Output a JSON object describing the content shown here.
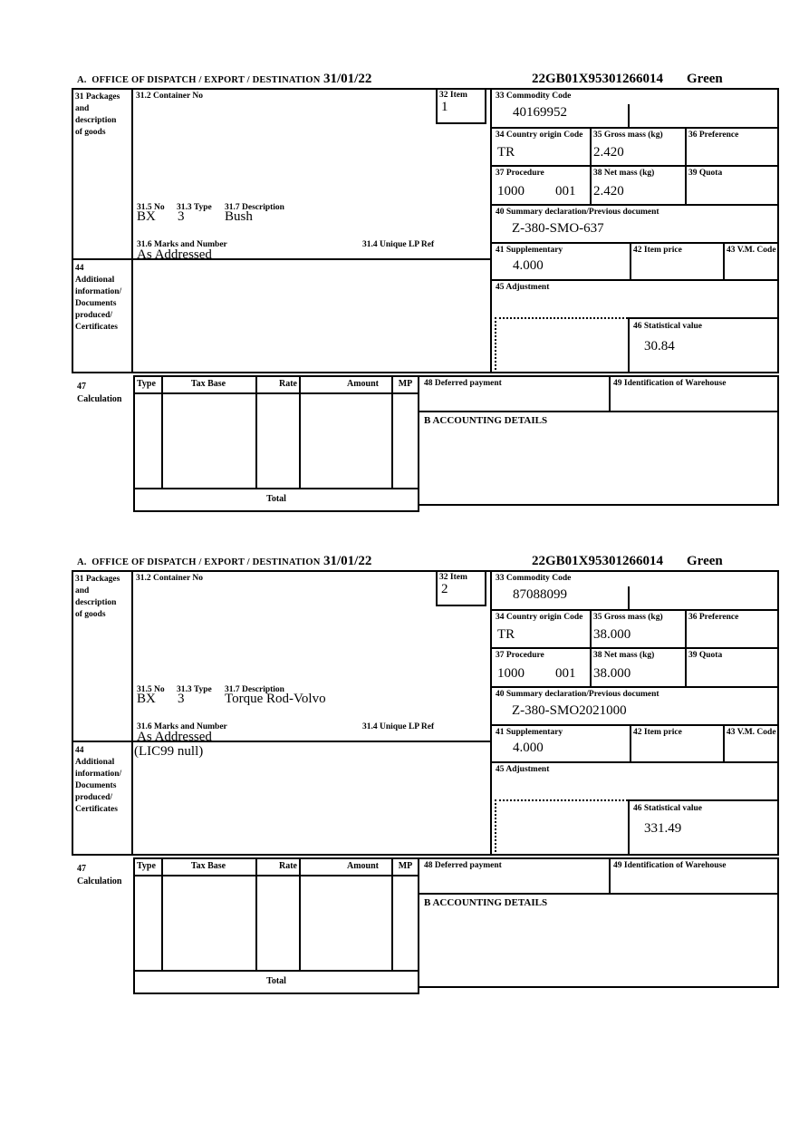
{
  "form": {
    "header": {
      "office": "A.  OFFICE OF DISPATCH / EXPORT / DESTINATION",
      "date": "31/01/22",
      "reference": "22GB01X95301266014",
      "routing": "Green"
    },
    "labels": {
      "b31_lines": [
        "31 Packages",
        "and",
        "description",
        "of goods"
      ],
      "b31_2": "31.2 Container No",
      "b32": "32 Item",
      "b33": "33 Commodity Code",
      "b31_5": "31.5 No",
      "b31_3": "31.3 Type",
      "b31_7": "31.7 Description",
      "b31_6": "31.6 Marks and Number",
      "b31_4": "31.4 Unique LP Ref",
      "b34": "34 Country origin Code",
      "b35": "35 Gross mass (kg)",
      "b36": "36 Preference",
      "b37": "37 Procedure",
      "b38": "38 Net mass (kg)",
      "b39": "39 Quota",
      "b40": "40 Summary declaration/Previous document",
      "b41": "41 Supplementary",
      "b42": "42 Item price",
      "b43": "43 V.M. Code",
      "b44_lines": [
        "44",
        "Additional",
        "information/",
        "Documents",
        "produced/",
        "Certificates"
      ],
      "b45": "45 Adjustment",
      "b46": "46 Statistical value",
      "b47_lines": [
        "47",
        "Calculation"
      ],
      "calc_cols": [
        "Type",
        "Tax Base",
        "Rate",
        "Amount",
        "MP"
      ],
      "total": "Total",
      "b48": "48 Deferred payment",
      "b49": "49 Identification of Warehouse",
      "accounting": "B ACCOUNTING DETAILS"
    },
    "items": [
      {
        "item_no": "1",
        "container_no": "",
        "commodity_code": "40169952",
        "country_origin_code": "TR",
        "gross_mass_kg": "2.420",
        "preference": "",
        "procedure": "1000",
        "procedure_suffix": "001",
        "net_mass_kg": "2.420",
        "quota": "",
        "summary_declaration": "Z-380-SMO-637",
        "supplementary": "4.000",
        "item_price": "",
        "vm_code": "",
        "adjustment": "",
        "statistical_value": "30.84",
        "package_count": "BX",
        "package_type": "3",
        "description": "Bush",
        "marks_and_number": "As Addressed",
        "unique_lp_ref": "",
        "additional_information": ""
      },
      {
        "item_no": "2",
        "container_no": "",
        "commodity_code": "87088099",
        "country_origin_code": "TR",
        "gross_mass_kg": "38.000",
        "preference": "",
        "procedure": "1000",
        "procedure_suffix": "001",
        "net_mass_kg": "38.000",
        "quota": "",
        "summary_declaration": "Z-380-SMO2021000",
        "supplementary": "4.000",
        "item_price": "",
        "vm_code": "",
        "adjustment": "",
        "statistical_value": "331.49",
        "package_count": "BX",
        "package_type": "3",
        "description": "Torque Rod-Volvo",
        "marks_and_number": "As Addressed",
        "unique_lp_ref": "",
        "additional_information": "(LIC99 null)"
      }
    ]
  }
}
